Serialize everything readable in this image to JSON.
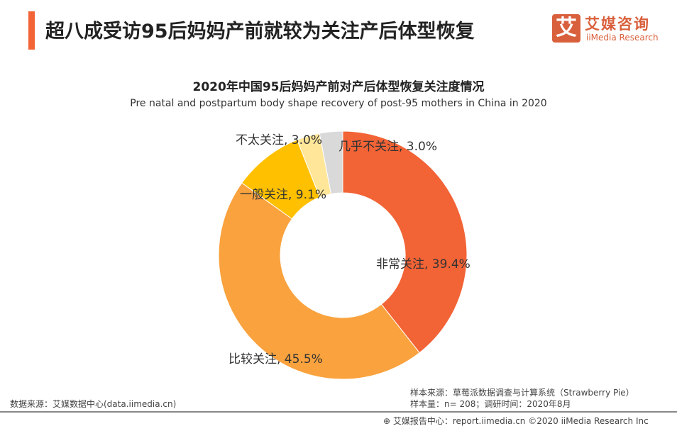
{
  "header": {
    "title": "超八成受访95后妈妈产前就较为关注产后体型恢复",
    "logo_cn": "艾媒咨询",
    "logo_en": "iiMedia Research",
    "logo_mark": "艾",
    "accent_color": "#F26336"
  },
  "chart_data": {
    "type": "pie",
    "donut": true,
    "title": "2020年中国95后妈妈产前对产后体型恢复关注度情况",
    "subtitle": "Pre natal and postpartum body shape recovery of post-95 mothers in China in 2020",
    "slices": [
      {
        "label": "非常关注",
        "value": 39.4,
        "text": "非常关注, 39.4%",
        "color": "#F26336"
      },
      {
        "label": "比较关注",
        "value": 45.5,
        "text": "比较关注, 45.5%",
        "color": "#F9A23E"
      },
      {
        "label": "一般关注",
        "value": 9.1,
        "text": "一般关注, 9.1%",
        "color": "#FFC000"
      },
      {
        "label": "不太关注",
        "value": 3.0,
        "text": "不太关注, 3.0%",
        "color": "#FFE699"
      },
      {
        "label": "几乎不关注",
        "value": 3.0,
        "text": "几乎不关注, 3.0%",
        "color": "#D9D9D9"
      }
    ]
  },
  "footer": {
    "source": "数据来源：艾媒数据中心(data.iimedia.cn)",
    "sample_source": "样本来源：草莓派数据调查与计算系统（Strawberry Pie）",
    "sample_size": "样本量：n= 208；调研时间：2020年8月",
    "report": "艾媒报告中心：report.iimedia.cn  ©2020  iiMedia Research  Inc"
  }
}
